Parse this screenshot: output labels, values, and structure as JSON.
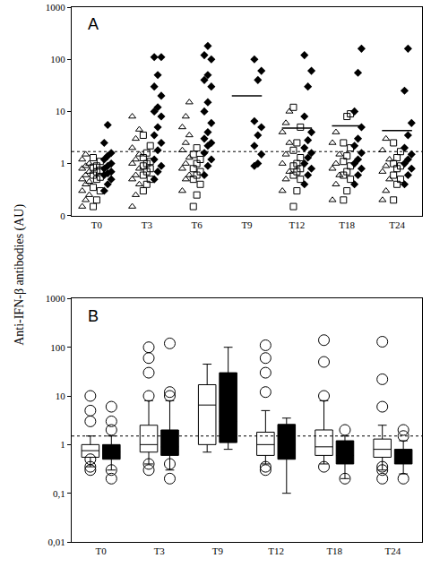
{
  "chart_data": [
    {
      "type": "scatter",
      "title": "A",
      "ylabel": "Anti-IFN-β antibodies (AU)",
      "log": "y",
      "grid": false,
      "categories": [
        "T0",
        "T3",
        "T6",
        "T9",
        "T12",
        "T18",
        "T24"
      ],
      "ylim": [
        0.1,
        1000
      ],
      "yticks": [
        {
          "value": 0.1,
          "label": "0"
        },
        1,
        10,
        100,
        1000
      ],
      "threshold": 1.7,
      "means": [
        null,
        null,
        null,
        20,
        4.8,
        5.3,
        4.3
      ],
      "series": [
        {
          "marker": "triangle-up-open",
          "color": "#000000",
          "values": [
            [
              0.15,
              0.2,
              0.25,
              0.3,
              0.4,
              0.45,
              0.5,
              0.6,
              0.7,
              0.8,
              0.9,
              1.0,
              1.2,
              1.5
            ],
            [
              0.15,
              0.25,
              0.4,
              0.5,
              0.6,
              0.8,
              1.0,
              1.2,
              1.5,
              2.0,
              3.0,
              4.5,
              8
            ],
            [
              0.3,
              0.5,
              0.6,
              0.8,
              1.0,
              1.3,
              1.8,
              2.5,
              3.5,
              5,
              8,
              15
            ],
            [],
            [
              0.3,
              0.5,
              0.7,
              1.0,
              1.5,
              2.5,
              4,
              6,
              10
            ],
            [
              0.2,
              0.4,
              0.6,
              0.8,
              1.0,
              1.5,
              2.5,
              4
            ],
            [
              0.2,
              0.3,
              0.5,
              0.7,
              0.9,
              1.2,
              1.8,
              3
            ]
          ]
        },
        {
          "marker": "square-open",
          "color": "#000000",
          "values": [
            [
              0.15,
              0.2,
              0.3,
              0.35,
              0.5,
              0.55,
              0.6,
              0.7,
              0.75,
              0.85,
              0.9,
              1.1,
              1.3
            ],
            [
              0.3,
              0.4,
              0.5,
              0.6,
              0.7,
              0.8,
              0.9,
              1.0,
              1.1,
              1.3,
              1.6,
              2.2,
              3.5
            ],
            [
              0.15,
              0.25,
              0.4,
              0.5,
              0.6,
              0.7,
              0.8,
              1.0,
              1.2,
              1.5,
              2.0
            ],
            [],
            [
              0.15,
              0.3,
              0.5,
              0.6,
              0.7,
              0.8,
              0.9,
              1.0,
              1.3,
              1.8,
              2.5,
              5,
              12
            ],
            [
              0.2,
              0.3,
              0.5,
              0.6,
              0.7,
              0.9,
              1.1,
              1.4,
              2.0,
              2.5,
              8,
              9
            ],
            [
              0.2,
              0.4,
              0.5,
              0.6,
              0.8,
              0.9,
              1.0,
              1.3,
              1.7,
              2.5
            ]
          ]
        },
        {
          "marker": "diamond",
          "color": "#000000",
          "values": [
            [
              0.3,
              0.4,
              0.5,
              0.6,
              0.65,
              0.7,
              0.8,
              0.9,
              1.0,
              1.2,
              1.4,
              1.6,
              2.5,
              5.5
            ],
            [
              0.5,
              0.7,
              0.9,
              1.2,
              1.8,
              2.5,
              3.5,
              5,
              8,
              10,
              12,
              20,
              30,
              50,
              110,
              110
            ],
            [
              0.6,
              0.9,
              1.2,
              1.6,
              2.2,
              2.5,
              3,
              4,
              6,
              10,
              15,
              30,
              40,
              50,
              100,
              120,
              180
            ],
            [
              0.9,
              1.0,
              1.5,
              2.2,
              3.5,
              5,
              6.5,
              40,
              60,
              100
            ],
            [
              0.4,
              0.6,
              0.8,
              1.0,
              1.3,
              1.6,
              2.0,
              2.8,
              4,
              8,
              30,
              60,
              120
            ],
            [
              0.4,
              0.6,
              0.8,
              1.0,
              1.2,
              1.6,
              2.2,
              3,
              5,
              10,
              55,
              160
            ],
            [
              0.4,
              0.6,
              0.8,
              1.0,
              1.2,
              1.5,
              2.0,
              3.5,
              6,
              25,
              160
            ]
          ]
        }
      ]
    },
    {
      "type": "box",
      "title": "B",
      "log": "y",
      "grid": false,
      "categories": [
        "T0",
        "T3",
        "T9",
        "T12",
        "T18",
        "T24"
      ],
      "ylim": [
        0.01,
        1000
      ],
      "yticks": [
        {
          "value": 0.01,
          "label": "0,01"
        },
        {
          "value": 0.1,
          "label": "0,1"
        },
        1,
        10,
        100,
        1000
      ],
      "threshold": 1.5,
      "series": [
        {
          "color": "#ffffff",
          "q1": [
            0.55,
            0.7,
            1.0,
            0.6,
            0.6,
            0.55
          ],
          "median": [
            0.75,
            1.0,
            6.5,
            1.0,
            0.9,
            0.8
          ],
          "q3": [
            1.0,
            2.5,
            17,
            1.8,
            2.0,
            1.3
          ],
          "lowerfence": [
            0.35,
            0.4,
            0.7,
            0.4,
            0.4,
            0.3
          ],
          "upperfence": [
            1.5,
            8,
            45,
            5,
            8,
            2.5
          ],
          "outliers": [
            [
              0.3,
              0.35,
              0.5,
              3,
              5,
              10
            ],
            [
              0.3,
              0.4,
              10,
              30,
              60,
              100
            ],
            [],
            [
              0.3,
              0.35,
              12,
              30,
              60,
              110
            ],
            [
              0.35,
              10,
              50,
              140
            ],
            [
              0.2,
              0.3,
              0.35,
              6,
              22,
              130
            ]
          ]
        },
        {
          "color": "#000000",
          "q1": [
            0.5,
            0.6,
            1.1,
            0.5,
            0.4,
            0.4
          ],
          "median": [
            0.7,
            0.9,
            3,
            1.0,
            0.6,
            0.5
          ],
          "q3": [
            1.0,
            2.0,
            30,
            2.6,
            1.2,
            0.8
          ],
          "lowerfence": [
            0.3,
            0.3,
            0.8,
            0.1,
            0.2,
            0.25
          ],
          "upperfence": [
            1.5,
            8,
            100,
            3.5,
            1.5,
            1.2
          ],
          "outliers": [
            [
              0.2,
              0.3,
              2,
              3,
              6
            ],
            [
              0.2,
              0.4,
              10,
              12,
              120
            ],
            [],
            [],
            [
              0.2,
              2
            ],
            [
              0.2,
              1.5,
              2
            ]
          ]
        }
      ]
    }
  ]
}
